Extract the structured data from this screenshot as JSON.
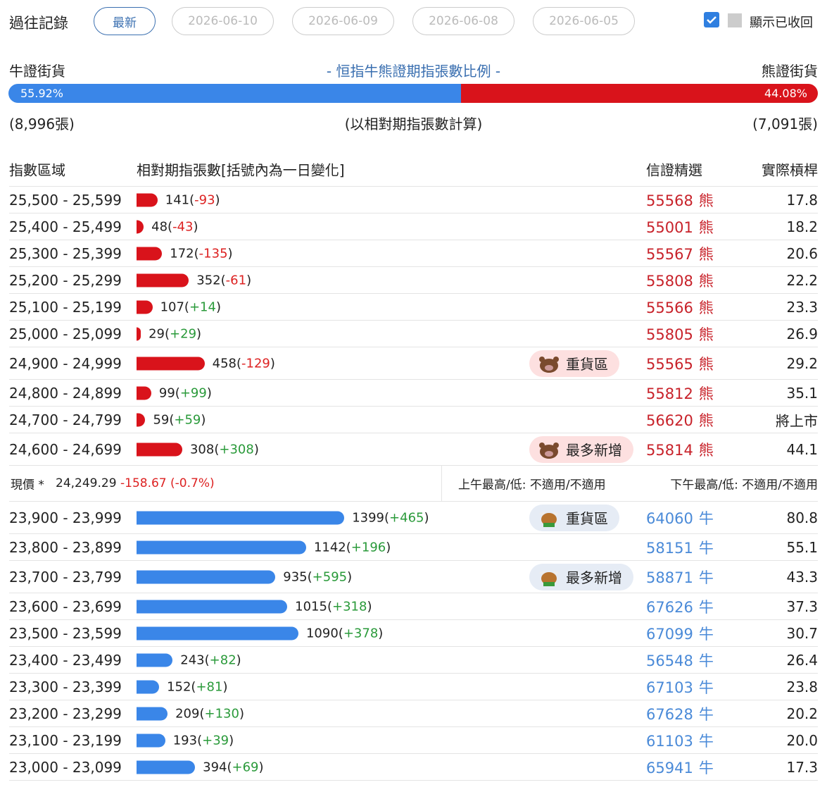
{
  "header": {
    "title": "過往記錄",
    "tabs": [
      "最新",
      "2026-06-10",
      "2026-06-09",
      "2026-06-08",
      "2026-06-05"
    ],
    "show_recycled": "顯示已收回"
  },
  "ratio": {
    "bull_label": "牛證街貨",
    "title": "- 恒指牛熊證期指張數比例 -",
    "bear_label": "熊證街貨",
    "bull_pct": 55.92,
    "bull_pct_label": "55.92%",
    "bear_pct": 44.08,
    "bear_pct_label": "44.08%",
    "bull_count": "(8,996張)",
    "note": "(以相對期指張數計算)",
    "bear_count": "(7,091張)"
  },
  "table": {
    "headers": [
      "指數區域",
      "相對期指張數[括號內為一日變化]",
      "信證精選",
      "實際槓桿"
    ],
    "bear_rows": [
      {
        "range": "25,500 - 25,599",
        "count": 141,
        "change": "-93",
        "code": "55568",
        "kind": "熊",
        "leverage": "17.8"
      },
      {
        "range": "25,400 - 25,499",
        "count": 48,
        "change": "-43",
        "code": "55001",
        "kind": "熊",
        "leverage": "18.2"
      },
      {
        "range": "25,300 - 25,399",
        "count": 172,
        "change": "-135",
        "code": "55567",
        "kind": "熊",
        "leverage": "20.6"
      },
      {
        "range": "25,200 - 25,299",
        "count": 352,
        "change": "-61",
        "code": "55808",
        "kind": "熊",
        "leverage": "22.2"
      },
      {
        "range": "25,100 - 25,199",
        "count": 107,
        "change": "+14",
        "code": "55566",
        "kind": "熊",
        "leverage": "23.3"
      },
      {
        "range": "25,000 - 25,099",
        "count": 29,
        "change": "+29",
        "code": "55805",
        "kind": "熊",
        "leverage": "26.9"
      },
      {
        "range": "24,900 - 24,999",
        "count": 458,
        "change": "-129",
        "code": "55565",
        "kind": "熊",
        "leverage": "29.2",
        "tag": "重貨區"
      },
      {
        "range": "24,800 - 24,899",
        "count": 99,
        "change": "+99",
        "code": "55812",
        "kind": "熊",
        "leverage": "35.1"
      },
      {
        "range": "24,700 - 24,799",
        "count": 59,
        "change": "+59",
        "code": "56620",
        "kind": "熊",
        "leverage": "將上市"
      },
      {
        "range": "24,600 - 24,699",
        "count": 308,
        "change": "+308",
        "code": "55814",
        "kind": "熊",
        "leverage": "44.1",
        "tag": "最多新增"
      }
    ],
    "price": {
      "label": "現價 *",
      "value": "24,249.29",
      "change": "-158.67 (-0.7%)",
      "am": "上午最高/低: 不適用/不適用",
      "pm": "下午最高/低: 不適用/不適用"
    },
    "bull_rows": [
      {
        "range": "23,900 - 23,999",
        "count": 1399,
        "change": "+465",
        "code": "64060",
        "kind": "牛",
        "leverage": "80.8",
        "tag": "重貨區"
      },
      {
        "range": "23,800 - 23,899",
        "count": 1142,
        "change": "+196",
        "code": "58151",
        "kind": "牛",
        "leverage": "55.1"
      },
      {
        "range": "23,700 - 23,799",
        "count": 935,
        "change": "+595",
        "code": "58871",
        "kind": "牛",
        "leverage": "43.3",
        "tag": "最多新增"
      },
      {
        "range": "23,600 - 23,699",
        "count": 1015,
        "change": "+318",
        "code": "67626",
        "kind": "牛",
        "leverage": "37.3"
      },
      {
        "range": "23,500 - 23,599",
        "count": 1090,
        "change": "+378",
        "code": "67099",
        "kind": "牛",
        "leverage": "30.7"
      },
      {
        "range": "23,400 - 23,499",
        "count": 243,
        "change": "+82",
        "code": "56548",
        "kind": "牛",
        "leverage": "26.4"
      },
      {
        "range": "23,300 - 23,399",
        "count": 152,
        "change": "+81",
        "code": "67103",
        "kind": "牛",
        "leverage": "23.8"
      },
      {
        "range": "23,200 - 23,299",
        "count": 209,
        "change": "+130",
        "code": "67628",
        "kind": "牛",
        "leverage": "20.2"
      },
      {
        "range": "23,100 - 23,199",
        "count": 193,
        "change": "+39",
        "code": "61103",
        "kind": "牛",
        "leverage": "20.0"
      },
      {
        "range": "23,000 - 23,099",
        "count": 394,
        "change": "+69",
        "code": "65941",
        "kind": "牛",
        "leverage": "17.3"
      }
    ]
  }
}
